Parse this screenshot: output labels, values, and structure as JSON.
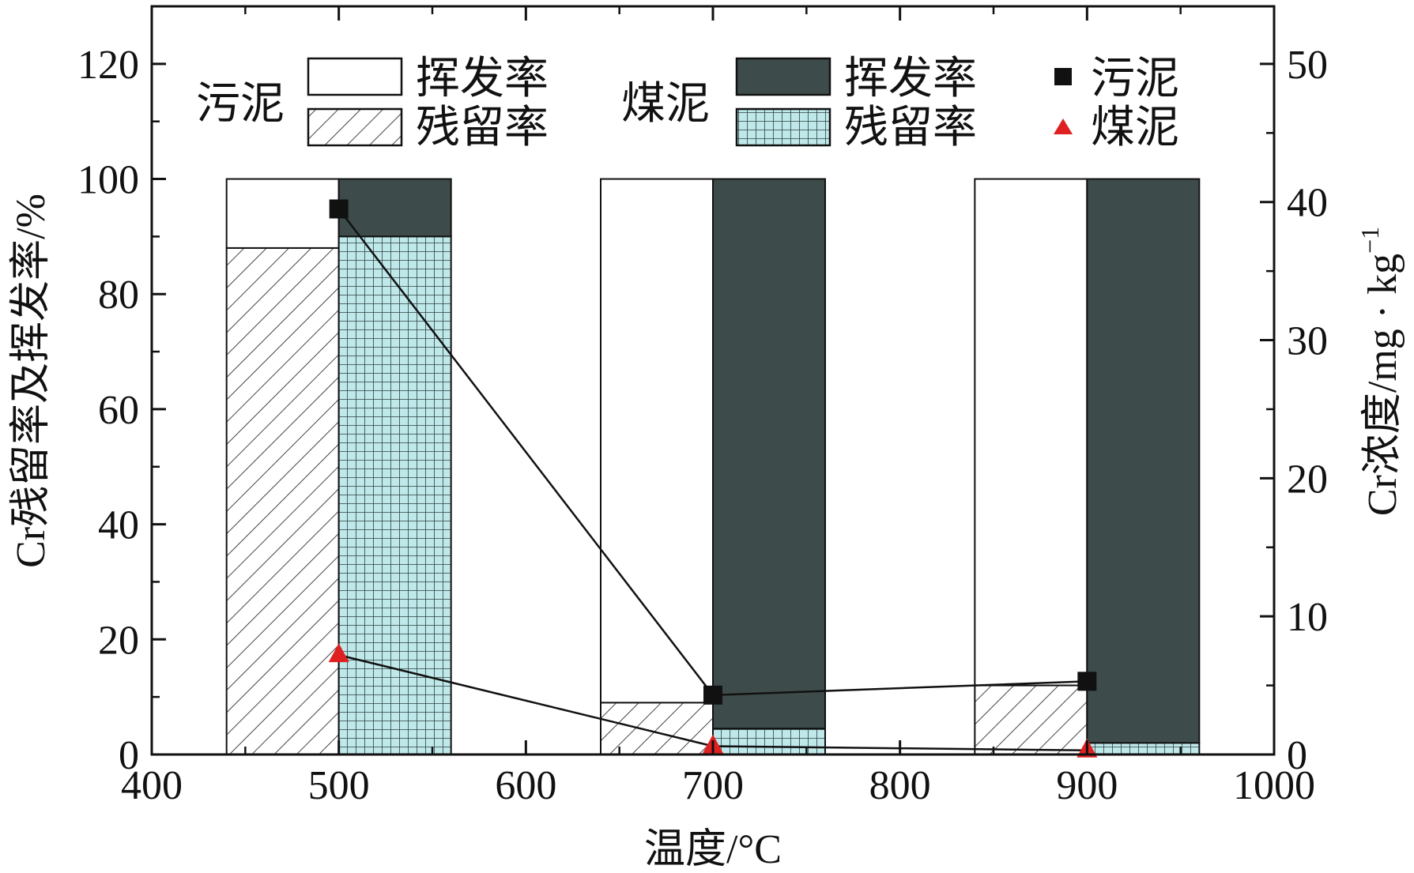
{
  "chart_data": {
    "type": "bar",
    "title": "",
    "xlabel": "温度/°C",
    "ylabel_left": "Cr残留率及挥发率/%",
    "ylabel_right_main": "Cr浓度/mg · kg",
    "ylabel_right_sup": "−1",
    "x_range": [
      400,
      1000
    ],
    "y_left_range": [
      0,
      130
    ],
    "y_right_range": [
      0,
      54.17
    ],
    "x_ticks": [
      "400",
      "500",
      "600",
      "700",
      "800",
      "900",
      "1000"
    ],
    "y_left_ticks": [
      "0",
      "20",
      "40",
      "60",
      "80",
      "100",
      "120"
    ],
    "y_right_ticks": [
      "0",
      "10",
      "20",
      "30",
      "40",
      "50"
    ],
    "x_tick_values": [
      400,
      500,
      600,
      700,
      800,
      900,
      1000
    ],
    "y_left_tick_values": [
      0,
      20,
      40,
      60,
      80,
      100,
      120
    ],
    "y_right_tick_values": [
      0,
      10,
      20,
      30,
      40,
      50
    ],
    "temperatures": [
      500,
      700,
      900
    ],
    "bars": [
      {
        "group": "污泥",
        "x_start": [
          440,
          640,
          840
        ],
        "x_end": [
          500,
          700,
          900
        ],
        "residual": [
          88,
          9,
          12
        ],
        "volatilization": [
          12,
          91,
          88
        ]
      },
      {
        "group": "煤泥",
        "x_start": [
          500,
          700,
          900
        ],
        "x_end": [
          560,
          760,
          960
        ],
        "residual": [
          90,
          4.5,
          2
        ],
        "volatilization": [
          10,
          95.5,
          98
        ]
      }
    ],
    "line_series": [
      {
        "name": "污泥",
        "marker": "square",
        "color": "#111111",
        "x": [
          500,
          700,
          900
        ],
        "y": [
          39.5,
          4.3,
          5.3
        ]
      },
      {
        "name": "煤泥",
        "marker": "triangle",
        "color": "#e02020",
        "x": [
          500,
          700,
          900
        ],
        "y": [
          7.2,
          0.6,
          0.3
        ]
      }
    ],
    "legend": {
      "placement": "top",
      "group_sludge": "污泥",
      "group_coal": "煤泥",
      "volatilization": "挥发率",
      "residual": "残留率",
      "line_sludge": "污泥",
      "line_coal": "煤泥"
    },
    "colors": {
      "sludge_volatilization": "#ffffff",
      "sludge_residual_hatch": "#444444",
      "coal_volatilization": "#3d4c4a",
      "coal_residual_fill": "#bfe8ea",
      "coal_residual_grid": "#2f4040",
      "line": "#111111",
      "triangle_marker": "#e02020",
      "square_marker": "#111111"
    },
    "grid": false
  }
}
